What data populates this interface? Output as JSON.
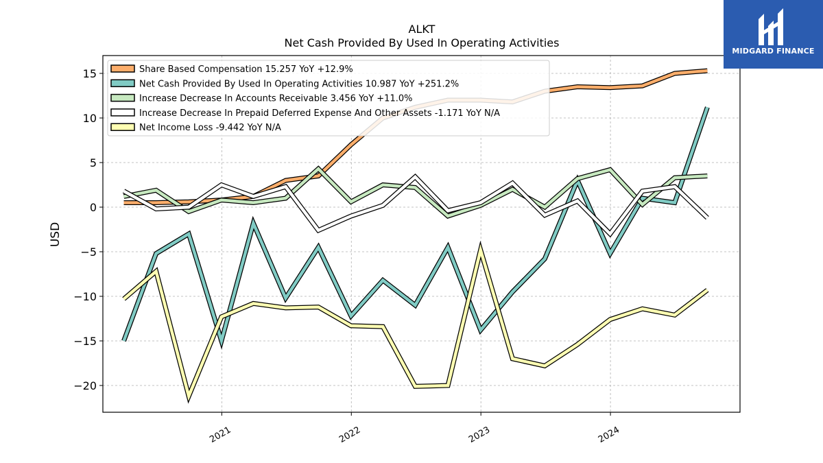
{
  "logo": {
    "text": "MIDGARD FINANCE"
  },
  "chart_data": {
    "type": "line",
    "title": "ALKT",
    "subtitle": "Net Cash Provided By Used In Operating Activities",
    "ylabel": "USD",
    "xlabel": "",
    "ylim": [
      -23,
      17
    ],
    "xlim": [
      "2020-02-01",
      "2024-12-31"
    ],
    "yticks": [
      15,
      10,
      5,
      0,
      -5,
      -10,
      -15,
      -20
    ],
    "ytick_labels": [
      "15",
      "10",
      "5",
      "0",
      "−5",
      "−10",
      "−15",
      "−20"
    ],
    "xticks": [
      {
        "date": "2021-01-01",
        "label": "2021"
      },
      {
        "date": "2022-01-01",
        "label": "2022"
      },
      {
        "date": "2023-01-01",
        "label": "2023"
      },
      {
        "date": "2024-01-01",
        "label": "2024"
      }
    ],
    "grid": true,
    "legend_position": "top-left",
    "x": [
      "2020-03-31",
      "2020-06-30",
      "2020-09-30",
      "2020-12-31",
      "2021-03-31",
      "2021-06-30",
      "2021-09-30",
      "2021-12-31",
      "2022-03-31",
      "2022-06-30",
      "2022-09-30",
      "2022-12-31",
      "2023-03-31",
      "2023-06-30",
      "2023-09-30",
      "2023-12-31",
      "2024-03-31",
      "2024-06-30",
      "2024-09-30"
    ],
    "series": [
      {
        "name": "Share Based Compensation",
        "legend_label": "Share Based Compensation  15.257 YoY +12.9%",
        "color": "#fdae6b",
        "values": [
          0.5,
          0.5,
          0.6,
          0.8,
          1.2,
          3.0,
          3.5,
          7.0,
          10.0,
          11.2,
          12.0,
          12.0,
          11.8,
          13.0,
          13.5,
          13.4,
          13.6,
          15.0,
          15.3
        ]
      },
      {
        "name": "Net Cash Provided By Used In Operating Activities",
        "legend_label": "Net Cash Provided By Used In Operating Activities  10.987 YoY +251.2%",
        "color": "#80cbc4",
        "values": [
          -15.0,
          -5.2,
          -3.0,
          -15.0,
          -1.8,
          -10.2,
          -4.5,
          -12.2,
          -8.2,
          -11.0,
          -4.5,
          -13.8,
          -9.5,
          -5.8,
          3.0,
          -5.2,
          1.0,
          0.5,
          11.2
        ]
      },
      {
        "name": "Increase Decrease In Accounts Receivable",
        "legend_label": "Increase Decrease In Accounts Receivable  3.456 YoY +11.0%",
        "color": "#c7e9c0",
        "values": [
          1.2,
          1.9,
          -0.5,
          0.8,
          0.5,
          1.0,
          4.3,
          0.6,
          2.5,
          2.2,
          -1.0,
          0.2,
          2.0,
          0.0,
          3.2,
          4.2,
          0.3,
          3.3,
          3.5
        ]
      },
      {
        "name": "Increase Decrease In Prepaid Deferred Expense And Other Assets",
        "legend_label": "Increase Decrease In Prepaid Deferred Expense And Other Assets  -1.171 YoY N/A",
        "color": "#ffffff",
        "values": [
          1.8,
          -0.2,
          0.0,
          2.5,
          1.2,
          2.3,
          -2.6,
          -1.0,
          0.2,
          3.4,
          -0.4,
          0.5,
          2.7,
          -0.9,
          0.7,
          -3.0,
          1.8,
          2.3,
          -1.2
        ]
      },
      {
        "name": "Net Income Loss",
        "legend_label": "Net Income Loss  -9.442 YoY N/A",
        "color": "#ffffb3",
        "values": [
          -10.3,
          -7.2,
          -21.2,
          -12.3,
          -10.8,
          -11.3,
          -11.2,
          -13.3,
          -13.4,
          -20.1,
          -20.0,
          -4.8,
          -17.0,
          -17.8,
          -15.4,
          -12.6,
          -11.4,
          -12.1,
          -9.3
        ]
      }
    ]
  }
}
